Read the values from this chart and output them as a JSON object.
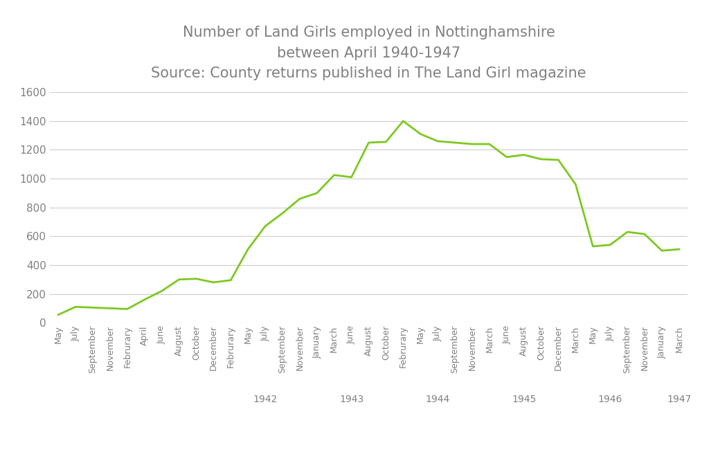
{
  "title": "Number of Land Girls employed in Nottinghamshire\nbetween April 1940-1947\nSource: County returns published in The Land Girl magazine",
  "line_color": "#7dc820",
  "background_color": "#ffffff",
  "grid_color": "#cccccc",
  "text_color": "#808080",
  "ylim": [
    0,
    1600
  ],
  "yticks": [
    0,
    200,
    400,
    600,
    800,
    1000,
    1200,
    1400,
    1600
  ],
  "x_labels": [
    "May",
    "July",
    "September",
    "November",
    "Februrary",
    "April",
    "June",
    "August",
    "October",
    "December",
    "Februrary",
    "May",
    "July",
    "September",
    "November",
    "January",
    "March",
    "June",
    "August",
    "October",
    "Februrary",
    "May",
    "July",
    "September",
    "November",
    "March",
    "June",
    "August",
    "October",
    "December",
    "March",
    "May",
    "July",
    "September",
    "November",
    "January",
    "March"
  ],
  "year_positions": {
    "1942": 12.0,
    "1943": 17.0,
    "1944": 22.0,
    "1945": 27.0,
    "1946": 32.0,
    "1947": 36.0
  },
  "values": [
    55,
    110,
    105,
    100,
    95,
    160,
    220,
    300,
    305,
    280,
    295,
    510,
    670,
    760,
    860,
    900,
    1025,
    1010,
    1250,
    1255,
    1400,
    1310,
    1260,
    1250,
    1240,
    1240,
    1150,
    1165,
    1135,
    1130,
    960,
    530,
    540,
    630,
    615,
    500,
    510
  ]
}
